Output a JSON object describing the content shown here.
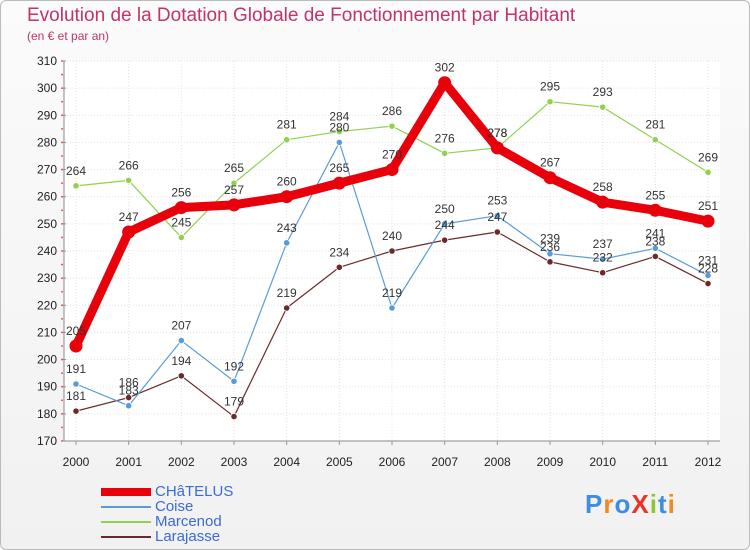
{
  "title": "Evolution de la Dotation Globale de Fonctionnement par Habitant",
  "subtitle": "(en € et par an)",
  "brand": {
    "text": "ProXiti",
    "colors": [
      "#3d8ee0",
      "#f08a1c",
      "#3d8ee0",
      "#e8342a",
      "#8cc63f",
      "#3d8ee0",
      "#f08a1c"
    ]
  },
  "chart_data": {
    "type": "line",
    "x": [
      "2000",
      "2001",
      "2002",
      "2003",
      "2004",
      "2005",
      "2006",
      "2007",
      "2008",
      "2009",
      "2010",
      "2011",
      "2012"
    ],
    "ylim": [
      170,
      310
    ],
    "yticks": [
      170,
      180,
      190,
      200,
      210,
      220,
      230,
      240,
      250,
      260,
      270,
      280,
      290,
      300,
      310
    ],
    "grid": true,
    "legend_position": "bottom-left",
    "series": [
      {
        "name": "CHâTELUS",
        "color": "#e8000b",
        "values": [
          205,
          247,
          256,
          257,
          260,
          265,
          270,
          302,
          278,
          267,
          258,
          255,
          251
        ]
      },
      {
        "name": "Coise",
        "color": "#5b9bd5",
        "values": [
          191,
          183,
          207,
          192,
          243,
          280,
          219,
          250,
          253,
          239,
          237,
          241,
          231
        ]
      },
      {
        "name": "Marcenod",
        "color": "#92d050",
        "values": [
          264,
          266,
          245,
          265,
          281,
          284,
          286,
          276,
          278,
          295,
          293,
          281,
          269
        ]
      },
      {
        "name": "Larajasse",
        "color": "#6b2a2a",
        "values": [
          181,
          186,
          194,
          179,
          219,
          234,
          240,
          244,
          247,
          236,
          232,
          238,
          228
        ]
      }
    ]
  }
}
